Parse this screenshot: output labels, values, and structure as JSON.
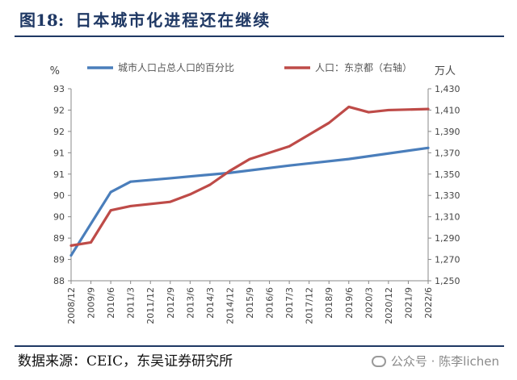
{
  "header": {
    "figure_label": "图18:",
    "title": "日本城市化进程还在继续"
  },
  "footer": {
    "source": "数据来源：CEIC，东吴证券研究所",
    "watermark": "公众号 · 陈李lichen"
  },
  "colors": {
    "brand_navy": "#1f3864",
    "series_blue": "#4a7ebb",
    "series_red": "#be4b48"
  },
  "chart_data": {
    "type": "line",
    "title": "",
    "x_ticks": [
      "2008/12",
      "2009/9",
      "2010/6",
      "2011/3",
      "2011/12",
      "2012/9",
      "2013/6",
      "2014/3",
      "2014/12",
      "2015/9",
      "2016/6",
      "2017/3",
      "2017/12",
      "2018/9",
      "2019/6",
      "2020/3",
      "2020/12",
      "2021/9",
      "2022/6"
    ],
    "y_left": {
      "unit": "%",
      "range": [
        88,
        93
      ],
      "tick_labels": [
        "93",
        "92",
        "92",
        "91",
        "91",
        "90",
        "90",
        "89",
        "89",
        "88"
      ],
      "tick_values": [
        93,
        92.5,
        92,
        91.5,
        91,
        90.5,
        90,
        89.5,
        89,
        88.5
      ]
    },
    "y_right": {
      "unit": "万人",
      "range": [
        1250,
        1430
      ],
      "tick_labels": [
        "1,430",
        "1,410",
        "1,390",
        "1,370",
        "1,350",
        "1,330",
        "1,310",
        "1,290",
        "1,270",
        "1,250"
      ],
      "tick_values": [
        1430,
        1410,
        1390,
        1370,
        1350,
        1330,
        1310,
        1290,
        1270,
        1250
      ]
    },
    "legend_position": "top",
    "series": [
      {
        "name": "城市人口占总人口的百分比",
        "axis": "left",
        "color": "#4a7ebb",
        "points": [
          {
            "x": "2008/12",
            "y": 88.66
          },
          {
            "x": "2010/6",
            "y": 90.31
          },
          {
            "x": "2011/3",
            "y": 90.58
          },
          {
            "x": "2012/9",
            "y": 90.67
          },
          {
            "x": "2014/12",
            "y": 90.81
          },
          {
            "x": "2017/3",
            "y": 91.0
          },
          {
            "x": "2019/6",
            "y": 91.17
          },
          {
            "x": "2022/6",
            "y": 91.46
          }
        ]
      },
      {
        "name": "人口：东京都（右轴）",
        "axis": "right",
        "color": "#be4b48",
        "points": [
          {
            "x": "2008/12",
            "y": 1283
          },
          {
            "x": "2009/9",
            "y": 1286
          },
          {
            "x": "2010/6",
            "y": 1316
          },
          {
            "x": "2011/3",
            "y": 1320
          },
          {
            "x": "2012/9",
            "y": 1324
          },
          {
            "x": "2013/6",
            "y": 1331
          },
          {
            "x": "2014/3",
            "y": 1340
          },
          {
            "x": "2014/12",
            "y": 1353
          },
          {
            "x": "2015/9",
            "y": 1364
          },
          {
            "x": "2017/3",
            "y": 1376
          },
          {
            "x": "2017/12",
            "y": 1387
          },
          {
            "x": "2018/9",
            "y": 1398
          },
          {
            "x": "2019/6",
            "y": 1413
          },
          {
            "x": "2020/3",
            "y": 1408
          },
          {
            "x": "2020/12",
            "y": 1410
          },
          {
            "x": "2022/6",
            "y": 1411
          }
        ]
      }
    ],
    "grid": true
  }
}
